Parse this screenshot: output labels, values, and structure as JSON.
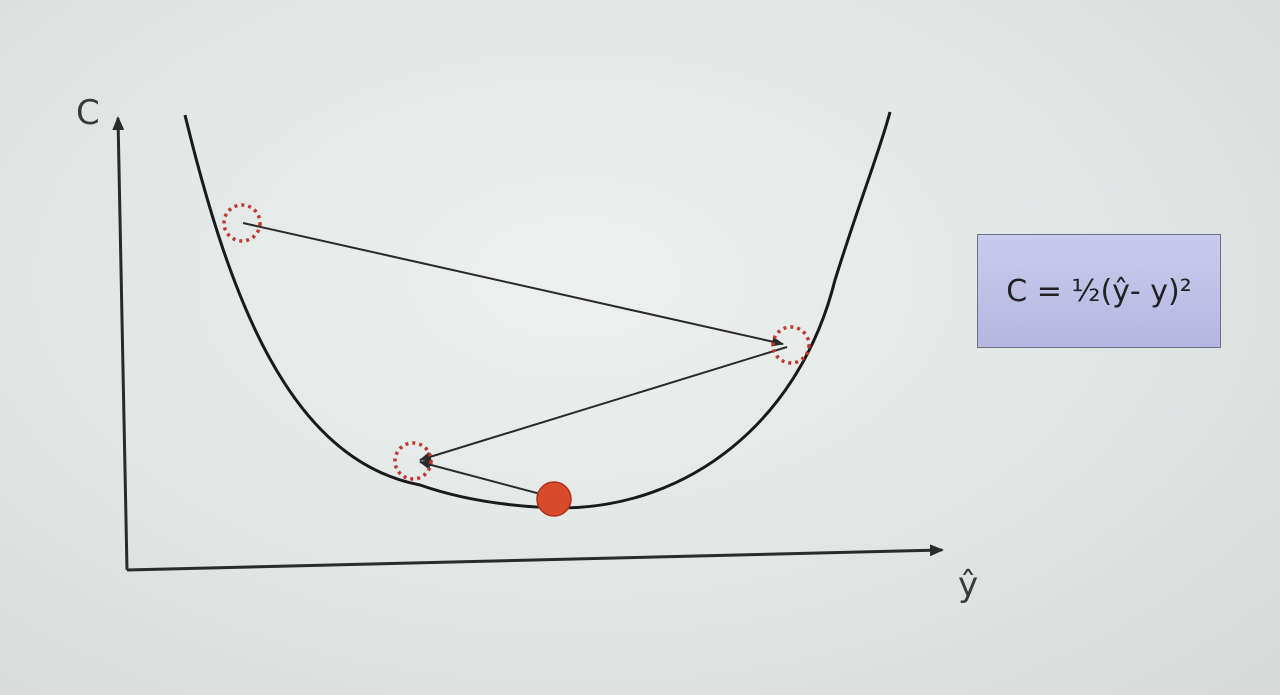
{
  "axes": {
    "y_label": "C",
    "x_label": "ŷ"
  },
  "formula": {
    "text": "C = ½(ŷ- y)²"
  },
  "colors": {
    "curve": "#1a1a1a",
    "arrow": "#2a2a2a",
    "marker_dotted": "#c0392b",
    "minimum_point": "#d94a2b",
    "formula_box": "#bfc1ea"
  },
  "markers": {
    "step_points": [
      "dotted-circle",
      "dotted-circle",
      "dotted-circle"
    ],
    "minimum": "filled-circle"
  }
}
